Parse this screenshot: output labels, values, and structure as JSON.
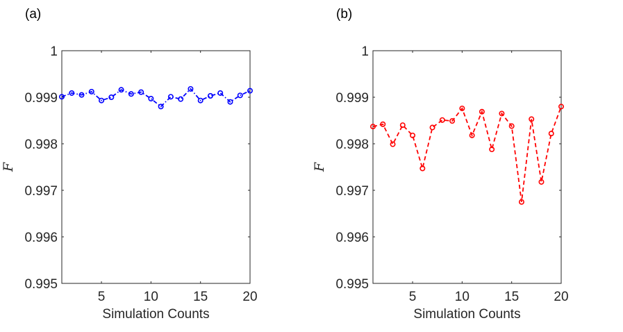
{
  "chart_data": [
    {
      "type": "line",
      "panel_label": "(a)",
      "xlabel": "Simulation Counts",
      "ylabel": "F",
      "xlim": [
        1,
        20
      ],
      "ylim": [
        0.995,
        1
      ],
      "xticks": [
        5,
        10,
        15,
        20
      ],
      "xtick_labels": [
        "5",
        "10",
        "15",
        "20"
      ],
      "yticks": [
        0.995,
        0.996,
        0.997,
        0.998,
        0.999,
        1
      ],
      "ytick_labels": [
        "0.995",
        "0.996",
        "0.997",
        "0.998",
        "0.999",
        "1"
      ],
      "grid": false,
      "line_style": "dash-dot",
      "marker": "circle",
      "color": "#0000ff",
      "series": [
        {
          "name": "F",
          "x": [
            1,
            2,
            3,
            4,
            5,
            6,
            7,
            8,
            9,
            10,
            11,
            12,
            13,
            14,
            15,
            16,
            17,
            18,
            19,
            20
          ],
          "values": [
            0.99901,
            0.99909,
            0.99905,
            0.99912,
            0.99893,
            0.999,
            0.99916,
            0.99907,
            0.99911,
            0.99897,
            0.9988,
            0.99901,
            0.99896,
            0.99918,
            0.99893,
            0.99903,
            0.99909,
            0.9989,
            0.99904,
            0.99914
          ]
        }
      ]
    },
    {
      "type": "line",
      "panel_label": "(b)",
      "xlabel": "Simulation Counts",
      "ylabel": "F",
      "xlim": [
        1,
        20
      ],
      "ylim": [
        0.995,
        1
      ],
      "xticks": [
        5,
        10,
        15,
        20
      ],
      "xtick_labels": [
        "5",
        "10",
        "15",
        "20"
      ],
      "yticks": [
        0.995,
        0.996,
        0.997,
        0.998,
        0.999,
        1
      ],
      "ytick_labels": [
        "0.995",
        "0.996",
        "0.997",
        "0.998",
        "0.999",
        "1"
      ],
      "grid": false,
      "line_style": "dashed",
      "marker": "circle",
      "color": "#ff0000",
      "series": [
        {
          "name": "F",
          "x": [
            1,
            2,
            3,
            4,
            5,
            6,
            7,
            8,
            9,
            10,
            11,
            12,
            13,
            14,
            15,
            16,
            17,
            18,
            19,
            20
          ],
          "values": [
            0.99837,
            0.99842,
            0.99799,
            0.9984,
            0.99818,
            0.99747,
            0.99835,
            0.99851,
            0.99849,
            0.99876,
            0.99818,
            0.99869,
            0.99788,
            0.99865,
            0.99838,
            0.99675,
            0.99853,
            0.99718,
            0.99822,
            0.9988
          ]
        }
      ]
    }
  ]
}
